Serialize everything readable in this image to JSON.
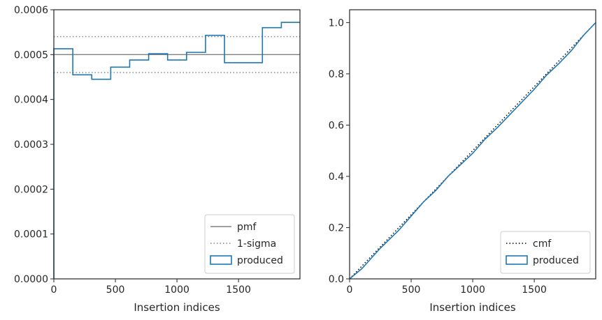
{
  "chart_data": [
    {
      "type": "line",
      "title": "",
      "xlabel": "Insertion indices",
      "ylabel": "",
      "xlim": [
        0,
        1999
      ],
      "ylim": [
        0,
        0.0006
      ],
      "x_ticks": [
        {
          "value": 0,
          "label": "0"
        },
        {
          "value": 500,
          "label": "500"
        },
        {
          "value": 1000,
          "label": "1000"
        },
        {
          "value": 1500,
          "label": "1500"
        }
      ],
      "y_ticks": [
        {
          "value": 0,
          "label": "0.0000"
        },
        {
          "value": 0.0001,
          "label": "0.0001"
        },
        {
          "value": 0.0002,
          "label": "0.0002"
        },
        {
          "value": 0.0003,
          "label": "0.0003"
        },
        {
          "value": 0.0004,
          "label": "0.0004"
        },
        {
          "value": 0.0005,
          "label": "0.0005"
        },
        {
          "value": 0.0006,
          "label": "0.0006"
        }
      ],
      "grid": false,
      "legend_position": "bottom-right",
      "series": [
        {
          "name": "pmf",
          "style": "solid",
          "color": "#808080",
          "y": 0.0005
        },
        {
          "name": "1-sigma",
          "style": "dotted",
          "color": "#808080",
          "y_values": [
            0.00054,
            0.00046
          ]
        },
        {
          "name": "produced",
          "style": "step",
          "color": "#1f77b4",
          "bin_edges": [
            0,
            154,
            308,
            462,
            616,
            770,
            924,
            1078,
            1232,
            1386,
            1540,
            1694,
            1848,
            1999
          ],
          "values": [
            0.000513,
            0.000455,
            0.000445,
            0.000472,
            0.000488,
            0.000502,
            0.000488,
            0.000505,
            0.000543,
            0.000482,
            0.000482,
            0.00056,
            0.000572
          ]
        }
      ]
    },
    {
      "type": "line",
      "title": "",
      "xlabel": "Insertion indices",
      "ylabel": "",
      "xlim": [
        0,
        1999
      ],
      "ylim": [
        0,
        1.05
      ],
      "x_ticks": [
        {
          "value": 0,
          "label": "0"
        },
        {
          "value": 500,
          "label": "500"
        },
        {
          "value": 1000,
          "label": "1000"
        },
        {
          "value": 1500,
          "label": "1500"
        }
      ],
      "y_ticks": [
        {
          "value": 0,
          "label": "0.0"
        },
        {
          "value": 0.2,
          "label": "0.2"
        },
        {
          "value": 0.4,
          "label": "0.4"
        },
        {
          "value": 0.6,
          "label": "0.6"
        },
        {
          "value": 0.8,
          "label": "0.8"
        },
        {
          "value": 1.0,
          "label": "1.0"
        }
      ],
      "grid": false,
      "legend_position": "bottom-right",
      "series": [
        {
          "name": "cmf",
          "style": "dotted",
          "color": "#000000",
          "x": [
            0,
            1999
          ],
          "y": [
            0,
            1.0
          ]
        },
        {
          "name": "produced",
          "style": "solid",
          "color": "#1f77b4",
          "x": [
            0,
            100,
            250,
            400,
            500,
            600,
            700,
            800,
            900,
            1000,
            1100,
            1200,
            1300,
            1400,
            1500,
            1600,
            1700,
            1800,
            1900,
            1999
          ],
          "y": [
            0,
            0.04,
            0.12,
            0.19,
            0.245,
            0.3,
            0.345,
            0.4,
            0.445,
            0.49,
            0.545,
            0.59,
            0.64,
            0.69,
            0.74,
            0.795,
            0.84,
            0.89,
            0.95,
            1.0
          ]
        }
      ]
    }
  ]
}
